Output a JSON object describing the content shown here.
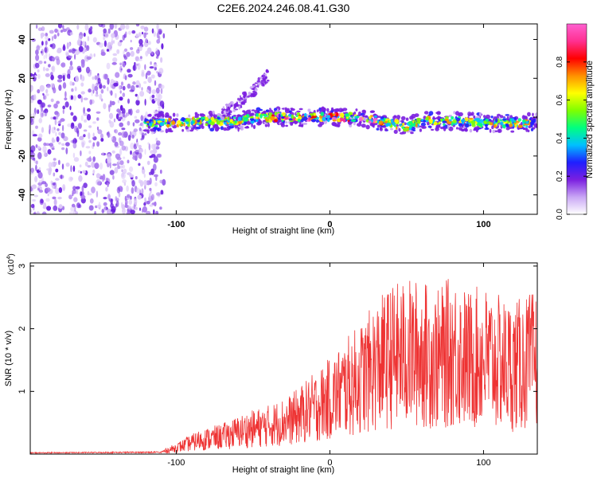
{
  "figure": {
    "title": "C2E6.2024.246.08.41.G30"
  },
  "chart_data": [
    {
      "type": "heatmap",
      "xlabel": "Height of straight line (km)",
      "ylabel": "Frequency (Hz)",
      "xlim": [
        -195,
        135
      ],
      "ylim": [
        -50,
        48
      ],
      "xticks": [
        -100,
        0,
        100
      ],
      "yticks": [
        -40,
        -20,
        0,
        20,
        40
      ],
      "colorbar": {
        "label": "Normalized spectral amplitude",
        "range": [
          0,
          1
        ],
        "ticks": [
          "0.0",
          "0.2",
          "0.4",
          "0.6",
          "0.8"
        ],
        "colors": [
          "#ffffff",
          "#c9a6f5",
          "#7b1fe0",
          "#1f1fff",
          "#00c0ff",
          "#00ff80",
          "#7fff00",
          "#ffff00",
          "#ff9000",
          "#ff0000",
          "#ff3090",
          "#ff60d0"
        ]
      },
      "noise_region_x": [
        -195,
        -108
      ],
      "ridge": {
        "x": [
          -120,
          -100,
          -80,
          -60,
          -45,
          -35,
          -20,
          0,
          20,
          40,
          50,
          60,
          80,
          100,
          120,
          135
        ],
        "y": [
          -3,
          -3,
          -2,
          -2,
          0,
          0,
          0,
          0,
          0,
          -3,
          -5,
          -2,
          -2,
          -3,
          -3,
          -3
        ]
      },
      "branch": {
        "x": [
          -70,
          -58,
          -48,
          -40
        ],
        "y": [
          2,
          8,
          15,
          22
        ]
      }
    },
    {
      "type": "line",
      "xlabel": "Height of straight line (km)",
      "ylabel": "SNR (10 * v/v)",
      "y_multiplier": "(x10",
      "y_multiplier_exp": "4",
      "y_multiplier_close": ")",
      "xlim": [
        -195,
        135
      ],
      "ylim": [
        0,
        3.05
      ],
      "xticks": [
        -100,
        0,
        100
      ],
      "yticks": [
        1,
        2,
        3
      ],
      "color": "#ee3333",
      "envelope": {
        "x": [
          -195,
          -110,
          -100,
          -85,
          -70,
          -55,
          -40,
          -25,
          -15,
          0,
          10,
          20,
          30,
          40,
          50,
          60,
          70,
          80,
          90,
          100,
          110,
          120,
          135
        ],
        "y": [
          0.02,
          0.03,
          0.1,
          0.22,
          0.28,
          0.38,
          0.45,
          0.55,
          0.68,
          0.88,
          1.05,
          1.2,
          1.4,
          1.55,
          1.6,
          1.6,
          1.5,
          1.65,
          1.5,
          1.55,
          1.45,
          1.4,
          1.5
        ]
      }
    }
  ]
}
